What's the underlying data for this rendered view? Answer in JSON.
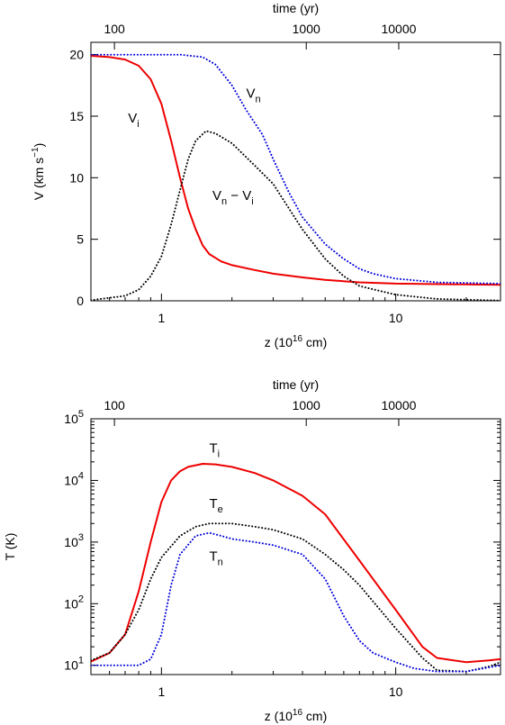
{
  "chart_data": [
    {
      "type": "line",
      "xscale": "log",
      "xlim": [
        0.5,
        28
      ],
      "ylim": [
        0,
        21
      ],
      "xlabel": "z (10",
      "xlabel_exp": "16",
      "xlabel_tail": " cm)",
      "ylabel": "V (km s",
      "ylabel_exp": "−1",
      "ylabel_tail": ")",
      "top_axis": {
        "label": "time (yr)",
        "ticks": [
          {
            "z": 0.63,
            "label": "100"
          },
          {
            "z": 4.15,
            "label": "1000"
          },
          {
            "z": 10.3,
            "label": "10000"
          }
        ]
      },
      "x_ticks": [
        {
          "v": 1,
          "label": "1"
        },
        {
          "v": 10,
          "label": "10"
        }
      ],
      "y_ticks": [
        {
          "v": 0,
          "label": "0"
        },
        {
          "v": 5,
          "label": "5"
        },
        {
          "v": 10,
          "label": "10"
        },
        {
          "v": 15,
          "label": "15"
        },
        {
          "v": 20,
          "label": "20"
        }
      ],
      "series": [
        {
          "name": "Vi",
          "color": "#ee0000",
          "style": "solid",
          "label": {
            "main": "V",
            "sub": "i",
            "at": [
              0.72,
              14.5
            ]
          },
          "points": [
            [
              0.5,
              19.9
            ],
            [
              0.6,
              19.8
            ],
            [
              0.7,
              19.6
            ],
            [
              0.8,
              19.1
            ],
            [
              0.9,
              18
            ],
            [
              1.0,
              16
            ],
            [
              1.1,
              13
            ],
            [
              1.2,
              10
            ],
            [
              1.3,
              7.5
            ],
            [
              1.4,
              5.8
            ],
            [
              1.5,
              4.5
            ],
            [
              1.6,
              3.8
            ],
            [
              1.8,
              3.2
            ],
            [
              2.0,
              2.9
            ],
            [
              2.5,
              2.5
            ],
            [
              3.0,
              2.2
            ],
            [
              4.0,
              1.9
            ],
            [
              5.0,
              1.7
            ],
            [
              7.0,
              1.5
            ],
            [
              10.0,
              1.4
            ],
            [
              20.0,
              1.33
            ],
            [
              28.0,
              1.3
            ]
          ]
        },
        {
          "name": "Vn",
          "color": "#0000dd",
          "style": "dotted",
          "label": {
            "main": "V",
            "sub": "n",
            "at": [
              2.3,
              16.5
            ]
          },
          "points": [
            [
              0.5,
              20
            ],
            [
              1.2,
              20
            ],
            [
              1.5,
              19.8
            ],
            [
              1.7,
              19.2
            ],
            [
              2.0,
              17.5
            ],
            [
              2.3,
              15.5
            ],
            [
              2.7,
              13.5
            ],
            [
              3.0,
              11.5
            ],
            [
              3.5,
              8.8
            ],
            [
              4.0,
              6.8
            ],
            [
              5.0,
              4.6
            ],
            [
              6.0,
              3.4
            ],
            [
              7.0,
              2.6
            ],
            [
              8.0,
              2.2
            ],
            [
              10.0,
              1.8
            ],
            [
              15.0,
              1.5
            ],
            [
              28.0,
              1.4
            ]
          ]
        },
        {
          "name": "Vn − Vi",
          "color": "#000000",
          "style": "dotted",
          "label": {
            "main": "V",
            "sub": "n",
            "mid": " − V",
            "sub2": "i",
            "at": [
              1.65,
              8.2
            ]
          },
          "points": [
            [
              0.5,
              0.05
            ],
            [
              0.7,
              0.4
            ],
            [
              0.8,
              0.9
            ],
            [
              0.9,
              2.0
            ],
            [
              1.0,
              3.6
            ],
            [
              1.1,
              6.2
            ],
            [
              1.2,
              9.0
            ],
            [
              1.3,
              11.5
            ],
            [
              1.4,
              13
            ],
            [
              1.55,
              13.8
            ],
            [
              1.7,
              13.6
            ],
            [
              2.0,
              12.8
            ],
            [
              2.5,
              11
            ],
            [
              3.0,
              9.5
            ],
            [
              3.5,
              7.5
            ],
            [
              4.0,
              5.8
            ],
            [
              5.0,
              3.4
            ],
            [
              6.0,
              2.0
            ],
            [
              7.0,
              1.2
            ],
            [
              10.0,
              0.5
            ],
            [
              15.0,
              0.15
            ],
            [
              28.0,
              0.02
            ]
          ]
        }
      ]
    },
    {
      "type": "line",
      "xscale": "log",
      "yscale": "log",
      "xlim": [
        0.5,
        28
      ],
      "ylim_log10": [
        0.85,
        5
      ],
      "xlabel": "z (10",
      "xlabel_exp": "16",
      "xlabel_tail": " cm)",
      "ylabel": "T (K)",
      "top_axis": {
        "label": "time (yr)",
        "ticks": [
          {
            "z": 0.63,
            "label": "100"
          },
          {
            "z": 4.15,
            "label": "1000"
          },
          {
            "z": 10.3,
            "label": "10000"
          }
        ]
      },
      "x_ticks": [
        {
          "v": 1,
          "label": "1"
        },
        {
          "v": 10,
          "label": "10"
        }
      ],
      "y_ticks": [
        {
          "v": 1,
          "label": "10",
          "exp": "1"
        },
        {
          "v": 2,
          "label": "10",
          "exp": "2"
        },
        {
          "v": 3,
          "label": "10",
          "exp": "3"
        },
        {
          "v": 4,
          "label": "10",
          "exp": "4"
        },
        {
          "v": 5,
          "label": "10",
          "exp": "5"
        }
      ],
      "series": [
        {
          "name": "Ti",
          "color": "#ee0000",
          "style": "solid",
          "label": {
            "main": "T",
            "sub": "i",
            "at": [
              1.6,
              4.45
            ]
          },
          "points": [
            [
              0.5,
              1.06
            ],
            [
              0.6,
              1.2
            ],
            [
              0.7,
              1.5
            ],
            [
              0.8,
              2.2
            ],
            [
              0.9,
              3.0
            ],
            [
              1.0,
              3.65
            ],
            [
              1.1,
              4.0
            ],
            [
              1.2,
              4.15
            ],
            [
              1.3,
              4.22
            ],
            [
              1.5,
              4.27
            ],
            [
              1.7,
              4.26
            ],
            [
              2.0,
              4.22
            ],
            [
              2.5,
              4.12
            ],
            [
              3.0,
              4.0
            ],
            [
              4.0,
              3.75
            ],
            [
              5.0,
              3.45
            ],
            [
              7.0,
              2.7
            ],
            [
              10.0,
              1.9
            ],
            [
              13.0,
              1.3
            ],
            [
              15.0,
              1.12
            ],
            [
              20.0,
              1.05
            ],
            [
              25.0,
              1.08
            ],
            [
              28.0,
              1.1
            ]
          ]
        },
        {
          "name": "Te",
          "color": "#000000",
          "style": "dotted",
          "label": {
            "main": "T",
            "sub": "e",
            "at": [
              1.6,
              3.55
            ]
          },
          "points": [
            [
              0.5,
              1.08
            ],
            [
              0.6,
              1.2
            ],
            [
              0.7,
              1.5
            ],
            [
              0.8,
              1.9
            ],
            [
              0.9,
              2.4
            ],
            [
              1.0,
              2.75
            ],
            [
              1.2,
              3.1
            ],
            [
              1.4,
              3.25
            ],
            [
              1.6,
              3.3
            ],
            [
              2.0,
              3.3
            ],
            [
              2.5,
              3.25
            ],
            [
              3.0,
              3.2
            ],
            [
              4.0,
              3.05
            ],
            [
              5.0,
              2.8
            ],
            [
              6.0,
              2.55
            ],
            [
              7.0,
              2.3
            ],
            [
              10.0,
              1.6
            ],
            [
              13.0,
              1.12
            ],
            [
              15.0,
              0.92
            ],
            [
              20.0,
              0.9
            ],
            [
              25.0,
              0.98
            ],
            [
              28.0,
              1.05
            ]
          ]
        },
        {
          "name": "Tn",
          "color": "#0000dd",
          "style": "dotted",
          "label": {
            "main": "T",
            "sub": "n",
            "at": [
              1.6,
              2.7
            ]
          },
          "points": [
            [
              0.5,
              1.0
            ],
            [
              0.8,
              1.0
            ],
            [
              0.9,
              1.1
            ],
            [
              1.0,
              1.5
            ],
            [
              1.1,
              2.3
            ],
            [
              1.2,
              2.8
            ],
            [
              1.4,
              3.1
            ],
            [
              1.6,
              3.15
            ],
            [
              1.8,
              3.1
            ],
            [
              2.0,
              3.05
            ],
            [
              2.5,
              3.0
            ],
            [
              3.0,
              2.95
            ],
            [
              4.0,
              2.8
            ],
            [
              5.0,
              2.4
            ],
            [
              6.0,
              1.8
            ],
            [
              7.0,
              1.4
            ],
            [
              8.0,
              1.2
            ],
            [
              10.0,
              1.05
            ],
            [
              12.0,
              0.95
            ],
            [
              15.0,
              0.9
            ],
            [
              20.0,
              0.9
            ],
            [
              28.0,
              1.0
            ]
          ]
        }
      ]
    }
  ]
}
